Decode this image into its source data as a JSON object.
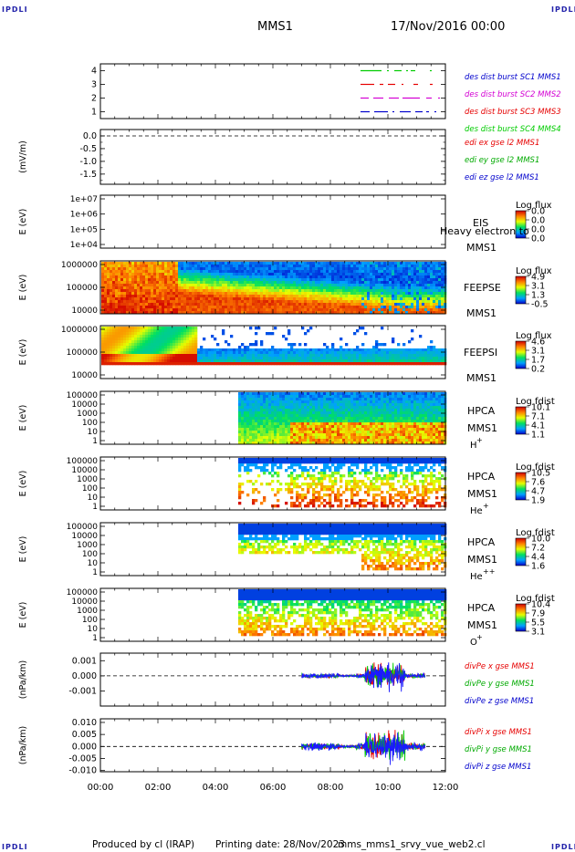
{
  "header": {
    "corner_label": "IPDLI",
    "spacecraft": "MMS1",
    "date_time": "17/Nov/2016 00:00"
  },
  "footer": {
    "producer": "Produced by cl (IRAP)",
    "printing_date": "Printing date: 28/Nov/2023",
    "file": "mms_mms1_srvy_vue_web2.cl"
  },
  "colors": {
    "blue": "#1a1aff",
    "red": "#e60000",
    "magenta": "#d400d4",
    "green": "#00cc00"
  },
  "chart_data": [
    {
      "type": "line",
      "id": "burst",
      "ylim": [
        0.5,
        4.5
      ],
      "yticks": [
        "1",
        "2",
        "3",
        "4"
      ],
      "series": [
        {
          "name": "des dist burst SC1 MMS1",
          "color": "#0000cc",
          "label_color": "#0000cc",
          "value": 1
        },
        {
          "name": "des dist burst SC2 MMS2",
          "color": "#d400d4",
          "label_color": "#d400d4",
          "value": 2
        },
        {
          "name": "des dist burst SC3 MMS3",
          "color": "#e60000",
          "label_color": "#e60000",
          "value": 3
        },
        {
          "name": "des dist burst SC4 MMS4",
          "color": "#00cc00",
          "label_color": "#00cc00",
          "value": 4
        }
      ]
    },
    {
      "type": "line",
      "id": "edi",
      "ylabel": "(mV/m)",
      "ylim": [
        -1.9,
        0.25
      ],
      "yticks": [
        "0.0",
        "-0.5",
        "-1.0",
        "-1.5"
      ],
      "series": [
        {
          "name": "edi ex gse l2 MMS1",
          "label_color": "#e60000"
        },
        {
          "name": "edi ey gse l2 MMS1",
          "label_color": "#00aa00"
        },
        {
          "name": "edi ez gse l2 MMS1",
          "label_color": "#0000cc"
        }
      ]
    },
    {
      "type": "heatmap",
      "id": "eis",
      "ylabel": "E (eV)",
      "yticks": [
        "1e+07",
        "1e+06",
        "1e+05",
        "1e+04"
      ],
      "labels": [
        "EIS",
        "Heavy electron to",
        "MMS1"
      ],
      "colorbar": {
        "title": "Log flux",
        "ticks": [
          "0.0",
          "0.0",
          "0.0",
          "0.0"
        ]
      }
    },
    {
      "type": "heatmap",
      "id": "feepse",
      "ylabel": "E (eV)",
      "yticks": [
        "1000000",
        "100000",
        "10000"
      ],
      "labels": [
        "FEEPSE",
        "MMS1"
      ],
      "colorbar": {
        "title": "Log flux",
        "ticks": [
          "4.9",
          "3.1",
          "1.3",
          "-0.5"
        ]
      }
    },
    {
      "type": "heatmap",
      "id": "feepsi",
      "ylabel": "E (eV)",
      "yticks": [
        "1000000",
        "100000",
        "10000"
      ],
      "labels": [
        "FEEPSI",
        "MMS1"
      ],
      "colorbar": {
        "title": "Log flux",
        "ticks": [
          "4.6",
          "3.1",
          "1.7",
          "0.2"
        ]
      }
    },
    {
      "type": "heatmap",
      "id": "hpca_h",
      "ylabel": "E (eV)",
      "yticks": [
        "100000",
        "10000",
        "1000",
        "100",
        "10",
        "1"
      ],
      "labels": [
        "HPCA",
        "MMS1",
        "H",
        "+"
      ],
      "colorbar": {
        "title": "Log fdist",
        "ticks": [
          "10.1",
          "7.1",
          "4.1",
          "1.1"
        ]
      }
    },
    {
      "type": "heatmap",
      "id": "hpca_he",
      "ylabel": "E (eV)",
      "yticks": [
        "100000",
        "10000",
        "1000",
        "100",
        "10",
        "1"
      ],
      "labels": [
        "HPCA",
        "MMS1",
        "He",
        "+"
      ],
      "colorbar": {
        "title": "Log fdist",
        "ticks": [
          "10.5",
          "7.6",
          "4.7",
          "1.9"
        ]
      }
    },
    {
      "type": "heatmap",
      "id": "hpca_hepp",
      "ylabel": "E (eV)",
      "yticks": [
        "100000",
        "10000",
        "1000",
        "100",
        "10",
        "1"
      ],
      "labels": [
        "HPCA",
        "MMS1",
        "He",
        "++"
      ],
      "colorbar": {
        "title": "Log fdist",
        "ticks": [
          "10.0",
          "7.2",
          "4.4",
          "1.6"
        ]
      }
    },
    {
      "type": "heatmap",
      "id": "hpca_o",
      "ylabel": "E (eV)",
      "yticks": [
        "100000",
        "10000",
        "1000",
        "100",
        "10",
        "1"
      ],
      "labels": [
        "HPCA",
        "MMS1",
        "O",
        "+"
      ],
      "colorbar": {
        "title": "Log fdist",
        "ticks": [
          "10.4",
          "7.9",
          "5.5",
          "3.1"
        ]
      }
    },
    {
      "type": "line",
      "id": "divpe",
      "ylabel": "(nPa/km)",
      "ylim": [
        -0.002,
        0.0015
      ],
      "yticks": [
        "0.001",
        "0.000",
        "-0.001"
      ],
      "series": [
        {
          "name": "divPe x gse MMS1",
          "label_color": "#e60000"
        },
        {
          "name": "divPe y gse MMS1",
          "label_color": "#00aa00"
        },
        {
          "name": "divPe z gse MMS1",
          "label_color": "#0000cc"
        }
      ]
    },
    {
      "type": "line",
      "id": "divpi",
      "ylabel": "(nPa/km)",
      "ylim": [
        -0.0105,
        0.0115
      ],
      "yticks": [
        "0.010",
        "0.005",
        "0.000",
        "-0.005",
        "-0.010"
      ],
      "series": [
        {
          "name": "divPi x gse MMS1",
          "label_color": "#e60000"
        },
        {
          "name": "divPi y gse MMS1",
          "label_color": "#00aa00"
        },
        {
          "name": "divPi z gse MMS1",
          "label_color": "#0000cc"
        }
      ]
    }
  ],
  "x_axis": {
    "ticks": [
      "00:00",
      "02:00",
      "04:00",
      "06:00",
      "08:00",
      "10:00",
      "12:00"
    ]
  }
}
